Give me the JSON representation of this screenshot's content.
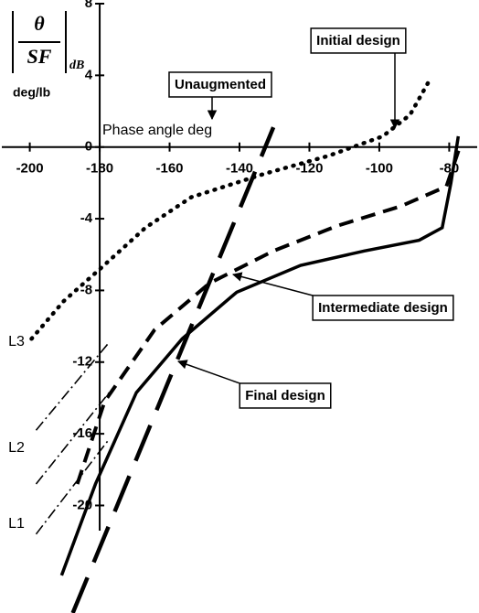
{
  "chart_data": {
    "type": "line",
    "xlabel": "Phase angle  deg",
    "ylabel": {
      "numerator": "θ",
      "denominator": "SF",
      "subscript": "dB",
      "units": "deg/lb"
    },
    "xlim": [
      -208,
      -72
    ],
    "ylim": [
      -26,
      8
    ],
    "xticks": [
      -200,
      -180,
      -160,
      -140,
      -120,
      -100,
      -80
    ],
    "yticks": [
      8,
      4,
      0,
      -4,
      -8,
      -12,
      -16,
      -20
    ],
    "series": [
      {
        "name": "Final design",
        "color": "#000000",
        "dash": "solid",
        "x": [
          -190.9,
          -181.2,
          -169.5,
          -156.4,
          -140.8,
          -122.5,
          -104.3,
          -88.6,
          -82,
          -79.5,
          -77.4
        ],
        "values": [
          -23.9,
          -18.8,
          -13.7,
          -10.7,
          -8.1,
          -6.6,
          -5.8,
          -5.2,
          -4.5,
          -2.0,
          0.6
        ]
      },
      {
        "name": "Intermediate design",
        "color": "#000000",
        "dash": "dashed",
        "x": [
          -186.4,
          -178.6,
          -164.3,
          -148.6,
          -130.3,
          -112.1,
          -93.8,
          -80.8,
          -76.9
        ],
        "values": [
          -18.8,
          -14.2,
          -10.2,
          -7.6,
          -5.8,
          -4.4,
          -3.3,
          -2.2,
          0.05
        ]
      },
      {
        "name": "Initial design",
        "color": "#000000",
        "dash": "dotted",
        "x": [
          -199.5,
          -190.3,
          -179.9,
          -166.9,
          -153.8,
          -133,
          -114.7,
          -99,
          -91.2,
          -86
        ],
        "values": [
          -10.7,
          -8.6,
          -6.8,
          -4.5,
          -2.8,
          -1.5,
          -0.5,
          0.6,
          1.8,
          3.6
        ]
      },
      {
        "name": "Unaugmented",
        "color": "#000000",
        "dash": "longdash",
        "x": [
          -187.7,
          -130.3
        ],
        "values": [
          -26,
          1.1
        ]
      },
      {
        "name": "L3",
        "color": "#000000",
        "dash": "dashdot",
        "x": [
          -198.2,
          -177.3
        ],
        "values": [
          -15.8,
          -10.9
        ]
      },
      {
        "name": "L2",
        "color": "#000000",
        "dash": "dashdot",
        "x": [
          -198.2,
          -177.3
        ],
        "values": [
          -18.8,
          -13.7
        ]
      },
      {
        "name": "L1",
        "color": "#000000",
        "dash": "dashdot",
        "x": [
          -198.2,
          -177.3
        ],
        "values": [
          -21.6,
          -16.3
        ]
      }
    ]
  }
}
